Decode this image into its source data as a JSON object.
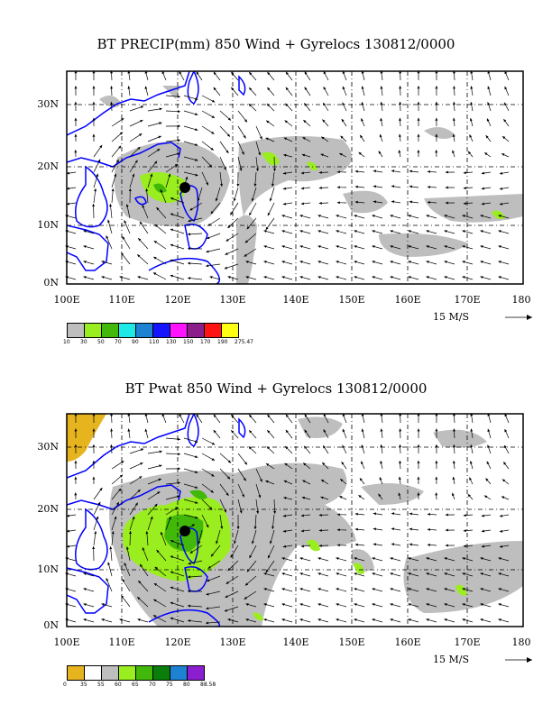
{
  "panels": [
    {
      "title": "BT PRECIP(mm) 850 Wind + Gyrelocs 130812/0000",
      "y_ticks": [
        "30N",
        "20N",
        "10N",
        "0N"
      ],
      "x_ticks": [
        "100E",
        "110E",
        "120E",
        "130E",
        "140E",
        "150E",
        "160E",
        "170E",
        "180"
      ],
      "ref_vector": "15 M/S",
      "legend_colors": [
        "#bebebe",
        "#9aed1e",
        "#42b90a",
        "#1ee8e8",
        "#1e82d2",
        "#1414ff",
        "#ff14ff",
        "#8c1e8c",
        "#ff1414",
        "#ffff14"
      ],
      "legend_labels": [
        "10",
        "30",
        "50",
        "70",
        "90",
        "110",
        "130",
        "150",
        "170",
        "190",
        "275.47"
      ]
    },
    {
      "title": "BT Pwat 850 Wind + Gyrelocs 130812/0000",
      "y_ticks": [
        "30N",
        "20N",
        "10N",
        "0N"
      ],
      "x_ticks": [
        "100E",
        "110E",
        "120E",
        "130E",
        "140E",
        "150E",
        "160E",
        "170E",
        "180"
      ],
      "ref_vector": "15 M/S",
      "legend_colors": [
        "#e6b41e",
        "#ffffff",
        "#bebebe",
        "#9aed1e",
        "#42b90a",
        "#0a7d0a",
        "#1e82d2",
        "#8c1ed2"
      ],
      "legend_labels": [
        "0",
        "35",
        "55",
        "60",
        "65",
        "70",
        "75",
        "80",
        "88.58"
      ]
    }
  ]
}
